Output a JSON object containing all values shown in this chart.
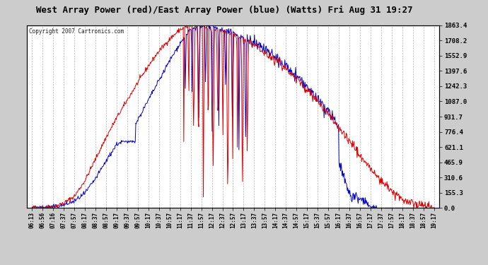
{
  "title": "West Array Power (red)/East Array Power (blue) (Watts) Fri Aug 31 19:27",
  "copyright": "Copyright 2007 Cartronics.com",
  "bg_color": "#cccccc",
  "plot_bg_color": "#ffffff",
  "red_color": "#dd0000",
  "blue_color": "#0000cc",
  "ytick_labels": [
    "0.0",
    "155.3",
    "310.6",
    "465.9",
    "621.1",
    "776.4",
    "931.7",
    "1087.0",
    "1242.3",
    "1397.6",
    "1552.9",
    "1708.2",
    "1863.4"
  ],
  "ytick_vals": [
    0.0,
    155.3,
    310.6,
    465.9,
    621.1,
    776.4,
    931.7,
    1087.0,
    1242.3,
    1397.6,
    1552.9,
    1708.2,
    1863.4
  ],
  "ymin": 0.0,
  "ymax": 1863.4,
  "xtick_labels": [
    "06:13",
    "06:56",
    "07:16",
    "07:37",
    "07:57",
    "08:17",
    "08:37",
    "08:57",
    "09:17",
    "09:37",
    "09:57",
    "10:17",
    "10:37",
    "10:57",
    "11:17",
    "11:37",
    "11:57",
    "12:17",
    "12:37",
    "12:57",
    "13:17",
    "13:37",
    "13:57",
    "14:17",
    "14:37",
    "14:57",
    "15:17",
    "15:37",
    "15:57",
    "16:17",
    "16:37",
    "16:57",
    "17:17",
    "17:37",
    "17:57",
    "18:17",
    "18:37",
    "18:57",
    "19:17"
  ]
}
